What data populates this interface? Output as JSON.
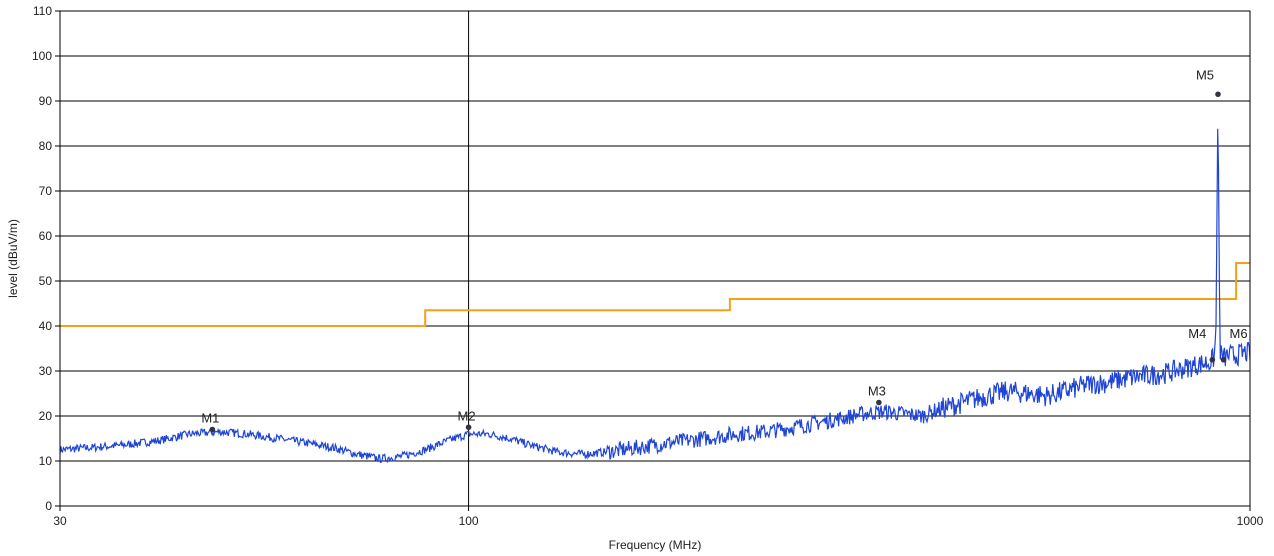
{
  "chart_data": {
    "type": "line",
    "title": "",
    "xlabel": "Frequency (MHz)",
    "ylabel": "level (dBuV/m)",
    "x_scale": "log",
    "xlim": [
      30,
      1000
    ],
    "ylim": [
      0,
      110
    ],
    "x_ticks": [
      30,
      100,
      1000
    ],
    "x_tick_labels": [
      "30",
      "100",
      "1000"
    ],
    "y_ticks": [
      0,
      10,
      20,
      30,
      40,
      50,
      60,
      70,
      80,
      90,
      100,
      110
    ],
    "y_tick_labels": [
      "0",
      "10",
      "20",
      "30",
      "40",
      "50",
      "60",
      "70",
      "80",
      "90",
      "100",
      "110"
    ],
    "grid": true,
    "legend": "none",
    "colors": {
      "limit": "#f5a01a",
      "trace": "#1f45d6",
      "marker": "#333344",
      "grid": "#000000"
    },
    "series": [
      {
        "kind": "step",
        "color": "#f5a01a",
        "x": [
          30,
          88,
          88,
          216,
          216,
          960,
          960,
          1000
        ],
        "y": [
          40,
          40,
          43.5,
          43.5,
          46,
          46,
          54,
          54
        ]
      },
      {
        "kind": "trace",
        "color": "#1f45d6",
        "x": [
          30,
          33,
          36,
          40,
          44,
          48,
          52,
          57,
          62,
          67,
          72,
          77,
          82,
          88,
          94,
          100,
          106,
          113,
          120,
          130,
          140,
          150,
          165,
          180,
          200,
          220,
          240,
          260,
          280,
          300,
          320,
          340,
          360,
          380,
          400,
          430,
          460,
          490,
          520,
          550,
          580,
          620,
          660,
          700,
          740,
          780,
          820,
          860,
          890,
          900,
          905,
          910,
          915,
          920,
          930,
          940,
          960,
          980,
          1000
        ],
        "y": [
          12.5,
          13,
          13.5,
          14.5,
          16,
          16.5,
          16,
          15,
          14,
          13,
          11.5,
          10.5,
          11,
          12.5,
          14.5,
          16,
          16,
          15,
          13.5,
          12,
          11.5,
          12,
          13,
          14,
          15,
          16,
          16.5,
          17.5,
          18.5,
          19.5,
          20.5,
          21,
          20.5,
          20,
          21.5,
          23,
          24.5,
          25.5,
          25,
          24.5,
          25.5,
          27,
          27.5,
          28.5,
          29,
          29.5,
          30.5,
          31.5,
          32,
          33,
          40,
          92,
          35,
          33,
          33,
          33.5,
          33.5,
          34,
          34
        ]
      }
    ],
    "markers": [
      {
        "label": "M1",
        "x": 47,
        "y": 17
      },
      {
        "label": "M2",
        "x": 100,
        "y": 17.5
      },
      {
        "label": "M3",
        "x": 335,
        "y": 23
      },
      {
        "label": "M4",
        "x": 895,
        "y": 32.5
      },
      {
        "label": "M5",
        "x": 910,
        "y": 91.5
      },
      {
        "label": "M6",
        "x": 925,
        "y": 32.5
      }
    ]
  }
}
